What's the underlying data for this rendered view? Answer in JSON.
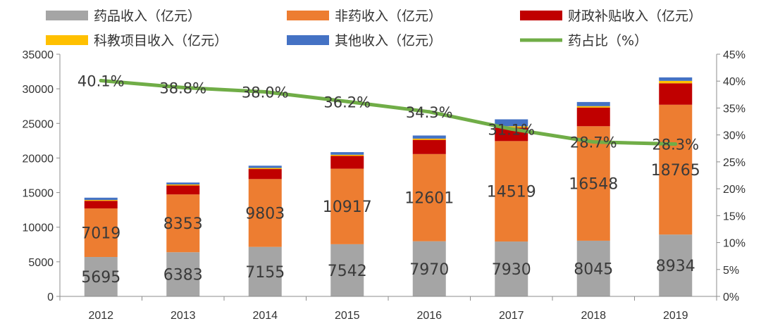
{
  "chart_data": {
    "type": "bar",
    "stacked": true,
    "categories": [
      "2012",
      "2013",
      "2014",
      "2015",
      "2016",
      "2017",
      "2018",
      "2019"
    ],
    "series": [
      {
        "name": "药品收入（亿元）",
        "color": "#a5a5a5",
        "axis": "left",
        "values": [
          5695,
          6383,
          7155,
          7542,
          7970,
          7930,
          8045,
          8934
        ],
        "labels": [
          "5695",
          "6383",
          "7155",
          "7542",
          "7970",
          "7930",
          "8045",
          "8934"
        ]
      },
      {
        "name": "非药收入（亿元）",
        "color": "#ed7d31",
        "axis": "left",
        "values": [
          7019,
          8353,
          9803,
          10917,
          12601,
          14519,
          16548,
          18765
        ],
        "labels": [
          "7019",
          "8353",
          "9803",
          "10917",
          "12601",
          "14519",
          "16548",
          "18765"
        ]
      },
      {
        "name": "财政补贴收入（亿元）",
        "color": "#c00000",
        "axis": "left",
        "values": [
          1100,
          1300,
          1450,
          1850,
          2050,
          1950,
          2700,
          3100
        ]
      },
      {
        "name": "科教项目收入（亿元）",
        "color": "#ffc000",
        "axis": "left",
        "values": [
          120,
          140,
          150,
          160,
          180,
          190,
          200,
          350
        ]
      },
      {
        "name": "其他收入（亿元）",
        "color": "#4472c4",
        "axis": "left",
        "values": [
          330,
          280,
          330,
          380,
          450,
          1000,
          600,
          500
        ]
      },
      {
        "name": "药占比（%）",
        "color": "#70ad47",
        "axis": "right",
        "type": "line",
        "values": [
          40.1,
          38.8,
          38.0,
          36.2,
          34.3,
          31.1,
          28.7,
          28.3
        ],
        "labels": [
          "40.1%",
          "38.8%",
          "38.0%",
          "36.2%",
          "34.3%",
          "31.1%",
          "28.7%",
          "28.3%"
        ]
      }
    ],
    "y_left": {
      "min": 0,
      "max": 35000,
      "step": 5000,
      "ticks": [
        "0",
        "5000",
        "10000",
        "15000",
        "20000",
        "25000",
        "30000",
        "35000"
      ]
    },
    "y_right": {
      "min": 0,
      "max": 45,
      "step": 5,
      "ticks": [
        "0%",
        "5%",
        "10%",
        "15%",
        "20%",
        "25%",
        "30%",
        "35%",
        "40%",
        "45%"
      ]
    },
    "legend_position": "top",
    "grid": false,
    "title": "",
    "xlabel": "",
    "ylabel": ""
  }
}
